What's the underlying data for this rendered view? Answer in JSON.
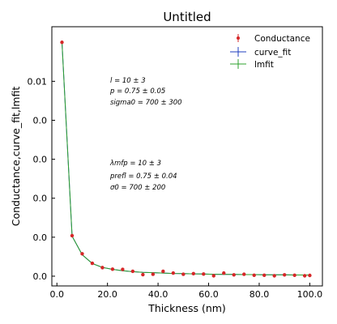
{
  "chart_data": {
    "type": "scatter",
    "title": "Untitled",
    "xlabel": "Thickness (nm)",
    "ylabel": "Conductance,curve_fit,lmfit",
    "xlim": [
      -2,
      105
    ],
    "ylim": [
      -0.0005,
      0.0128
    ],
    "x_ticks": [
      0,
      20,
      40,
      60,
      80,
      100
    ],
    "x_tick_labels": [
      "0.0",
      "20.0",
      "40.0",
      "60.0",
      "80.0",
      "100.0"
    ],
    "y_ticks": [
      0,
      0.002,
      0.004,
      0.006,
      0.008,
      0.01
    ],
    "y_tick_labels": [
      "0.0",
      "0.0",
      "0.0",
      "0.0",
      "0.0",
      "0.01"
    ],
    "grid": false,
    "legend_position": "top-right",
    "series": [
      {
        "name": "Conductance",
        "style": "points-with-errorbars",
        "color": "#d62728",
        "x": [
          2,
          6,
          10,
          14,
          18,
          22,
          26,
          30,
          34,
          38,
          42,
          46,
          50,
          54,
          58,
          62,
          66,
          70,
          74,
          78,
          82,
          86,
          90,
          94,
          98,
          100
        ],
        "values": [
          0.012,
          0.00208,
          0.00115,
          0.00066,
          0.00044,
          0.00036,
          0.00035,
          0.00025,
          8e-05,
          0.0001,
          0.00025,
          0.00016,
          0.0001,
          0.00013,
          0.00011,
          2e-05,
          0.00016,
          7e-05,
          0.0001,
          5e-05,
          5e-05,
          2e-05,
          7e-05,
          5e-05,
          2e-05,
          4e-05
        ]
      },
      {
        "name": "curve_fit",
        "style": "line",
        "color": "#1f3fbf",
        "x": [
          2,
          6,
          10,
          14,
          18,
          22,
          26,
          30,
          34,
          38,
          42,
          46,
          50,
          54,
          58,
          62,
          66,
          70,
          74,
          78,
          82,
          86,
          90,
          94,
          98,
          100
        ],
        "values": [
          0.012,
          0.00205,
          0.0011,
          0.00065,
          0.00045,
          0.00035,
          0.00028,
          0.00023,
          0.0002,
          0.00018,
          0.00016,
          0.00014,
          0.00013,
          0.00012,
          0.00011,
          0.0001,
          9e-05,
          9e-05,
          8e-05,
          8e-05,
          7e-05,
          7e-05,
          7e-05,
          6e-05,
          6e-05,
          6e-05
        ]
      },
      {
        "name": "lmfit",
        "style": "line",
        "color": "#2ca02c",
        "x": [
          2,
          6,
          10,
          14,
          18,
          22,
          26,
          30,
          34,
          38,
          42,
          46,
          50,
          54,
          58,
          62,
          66,
          70,
          74,
          78,
          82,
          86,
          90,
          94,
          98,
          100
        ],
        "values": [
          0.012,
          0.00205,
          0.0011,
          0.00065,
          0.00045,
          0.00035,
          0.00028,
          0.00023,
          0.0002,
          0.00018,
          0.00016,
          0.00014,
          0.00013,
          0.00012,
          0.00011,
          0.0001,
          9e-05,
          9e-05,
          8e-05,
          8e-05,
          7e-05,
          7e-05,
          7e-05,
          6e-05,
          6e-05,
          6e-05
        ]
      }
    ],
    "annotations": {
      "curve_fit_params": [
        "l = 10 ± 3",
        "p = 0.75 ± 0.05",
        "sigma0 = 700 ± 300"
      ],
      "lmfit_params": [
        "λmfp = 10 ± 3",
        "prefl = 0.75 ± 0.04",
        "σ0 = 700 ± 200"
      ]
    }
  }
}
